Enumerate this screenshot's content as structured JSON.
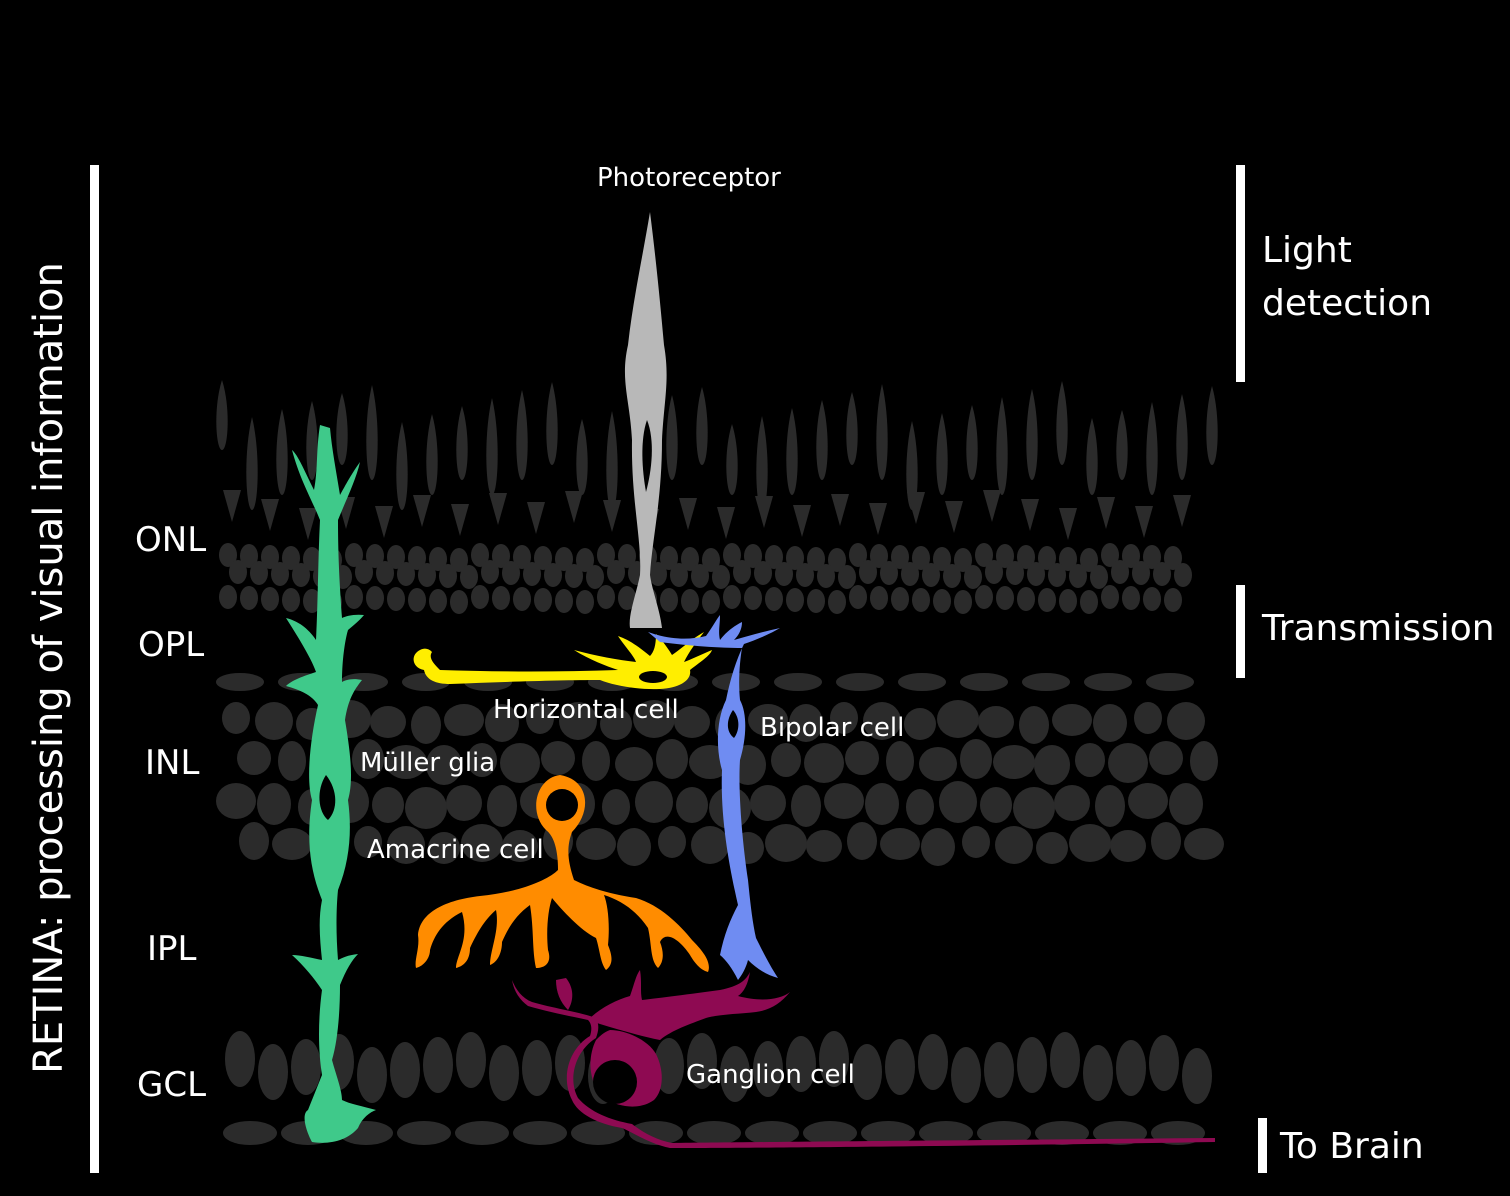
{
  "colors": {
    "background": "#000000",
    "tissue": "#2b2b2b",
    "photoreceptor": "#b8b8b8",
    "muller": "#3fc98a",
    "horizontal": "#ffee00",
    "bipolar": "#6f8cf2",
    "amacrine": "#ff8c00",
    "ganglion": "#8e0a52",
    "text": "#ffffff"
  },
  "vertical_title": "RETINA: processing of visual information",
  "layers": {
    "onl": "ONL",
    "opl": "OPL",
    "inl": "INL",
    "ipl": "IPL",
    "gcl": "GCL"
  },
  "functions": {
    "light_1": "Light",
    "light_2": "detection",
    "transmission": "Transmission",
    "to_brain": "To Brain"
  },
  "cells": {
    "photoreceptor": "Photoreceptor",
    "horizontal": "Horizontal cell",
    "bipolar": "Bipolar cell",
    "muller": "Müller glia",
    "amacrine": "Amacrine cell",
    "ganglion": "Ganglion cell"
  }
}
